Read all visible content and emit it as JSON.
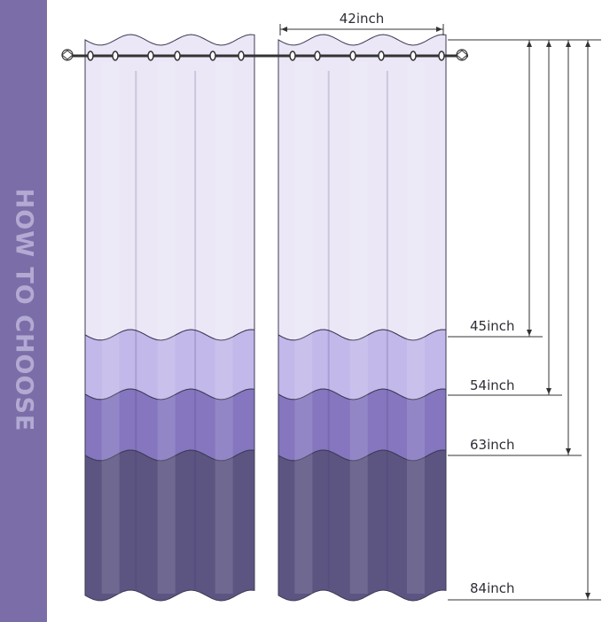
{
  "side_title": "HOW TO CHOOSE",
  "width_label": "42inch",
  "lengths": [
    {
      "label": "45inch"
    },
    {
      "label": "54inch"
    },
    {
      "label": "63inch"
    },
    {
      "label": "84inch"
    }
  ],
  "colors": {
    "sidebar": "#7b6ea8",
    "band_1": "#ebe7f6",
    "band_2": "#c2b8ea",
    "band_3": "#8576bf",
    "band_4": "#5c5582",
    "outline": "#3d3a55"
  }
}
